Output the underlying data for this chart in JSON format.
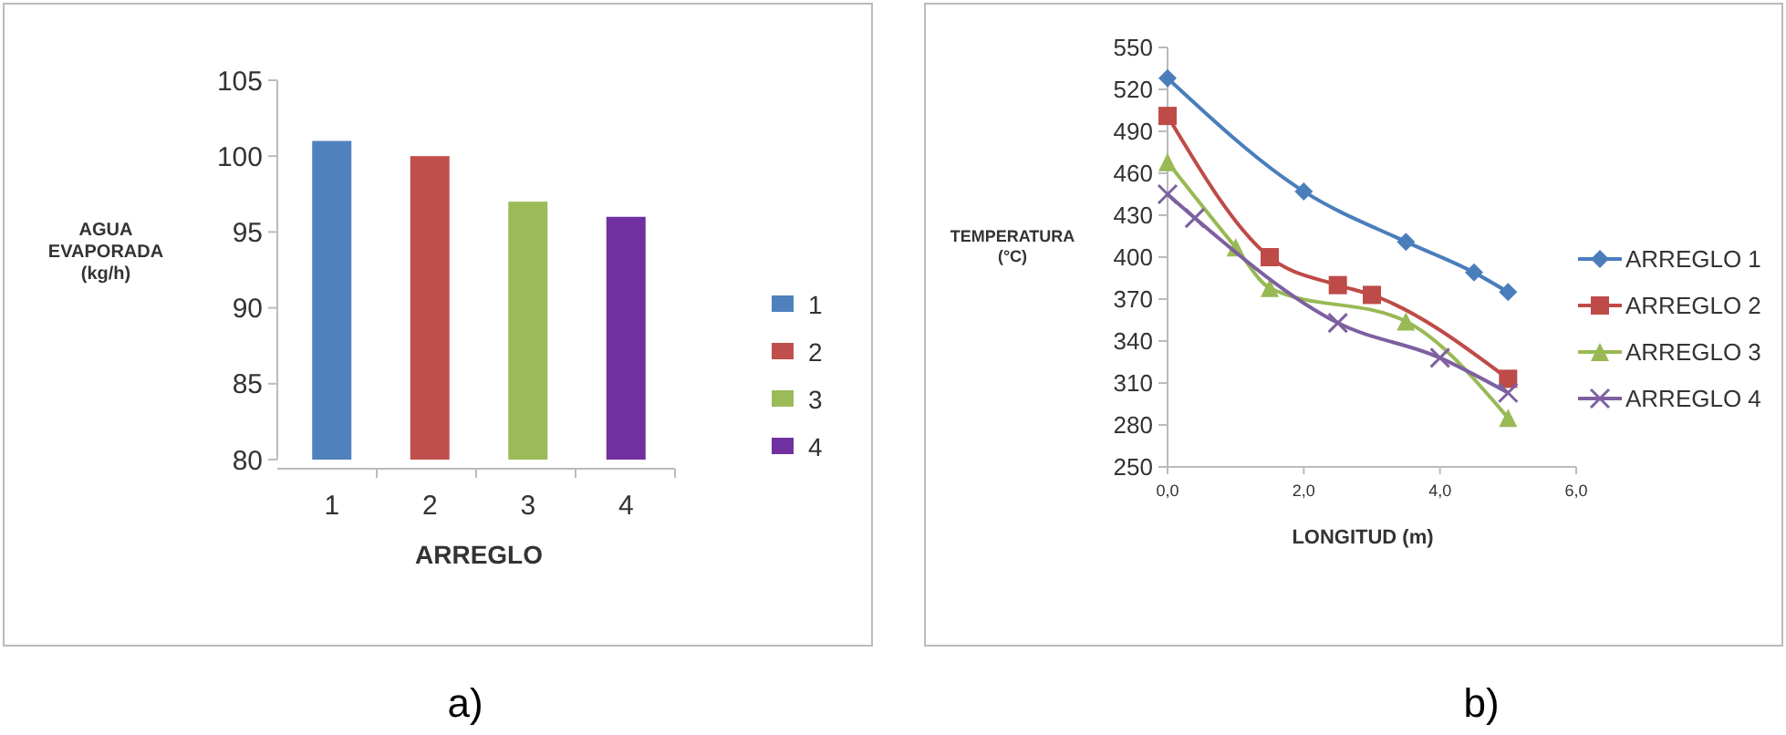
{
  "chart_data": [
    {
      "type": "bar",
      "categories": [
        "1",
        "2",
        "3",
        "4"
      ],
      "series": [
        {
          "name": "1",
          "color": "#4f81bd",
          "values": [
            101,
            null,
            null,
            null
          ]
        },
        {
          "name": "2",
          "color": "#c0504d",
          "values": [
            null,
            100,
            null,
            null
          ]
        },
        {
          "name": "3",
          "color": "#9bbb59",
          "values": [
            null,
            null,
            97,
            null
          ]
        },
        {
          "name": "4",
          "color": "#7030a0",
          "values": [
            null,
            null,
            null,
            96
          ]
        }
      ],
      "xlabel": "ARREGLO",
      "ylabel": "AGUA\nEVAPORADA\n(kg/h)",
      "ylim": [
        80,
        105
      ],
      "yticks": [
        80,
        85,
        90,
        95,
        100,
        105
      ],
      "legend": "right",
      "grid": false,
      "annotations": [
        "a)"
      ]
    },
    {
      "type": "line",
      "xlabel": "LONGITUD  (m)",
      "ylabel": "TEMPERATURA\n(°C)",
      "xlim": [
        0,
        6
      ],
      "xticks": [
        {
          "value": 0,
          "label": "0,0"
        },
        {
          "value": 2,
          "label": "2,0"
        },
        {
          "value": 4,
          "label": "4,0"
        },
        {
          "value": 6,
          "label": "6,0"
        }
      ],
      "ylim": [
        250,
        550
      ],
      "yticks": [
        250,
        280,
        310,
        340,
        370,
        400,
        430,
        460,
        490,
        520,
        550
      ],
      "legend": "right",
      "grid": false,
      "annotations": [
        "b)"
      ],
      "series": [
        {
          "name": "ARREGLO 1",
          "color": "#4a7ebb",
          "marker": "diamond",
          "x": [
            0,
            2,
            3.5,
            4.5,
            5
          ],
          "values": [
            528,
            447,
            411,
            389,
            375
          ]
        },
        {
          "name": "ARREGLO 2",
          "color": "#be4b48",
          "marker": "square",
          "x": [
            0,
            1.5,
            2.5,
            3,
            5
          ],
          "values": [
            501,
            400,
            380,
            373,
            313
          ]
        },
        {
          "name": "ARREGLO 3",
          "color": "#98b954",
          "marker": "triangle",
          "x": [
            0,
            1,
            1.5,
            3.5,
            5
          ],
          "values": [
            468,
            407,
            378,
            354,
            285
          ]
        },
        {
          "name": "ARREGLO 4",
          "color": "#7d60a0",
          "marker": "cross",
          "x": [
            0,
            0.4,
            2.5,
            4,
            5
          ],
          "values": [
            445,
            428,
            353,
            328,
            303
          ]
        }
      ]
    }
  ]
}
